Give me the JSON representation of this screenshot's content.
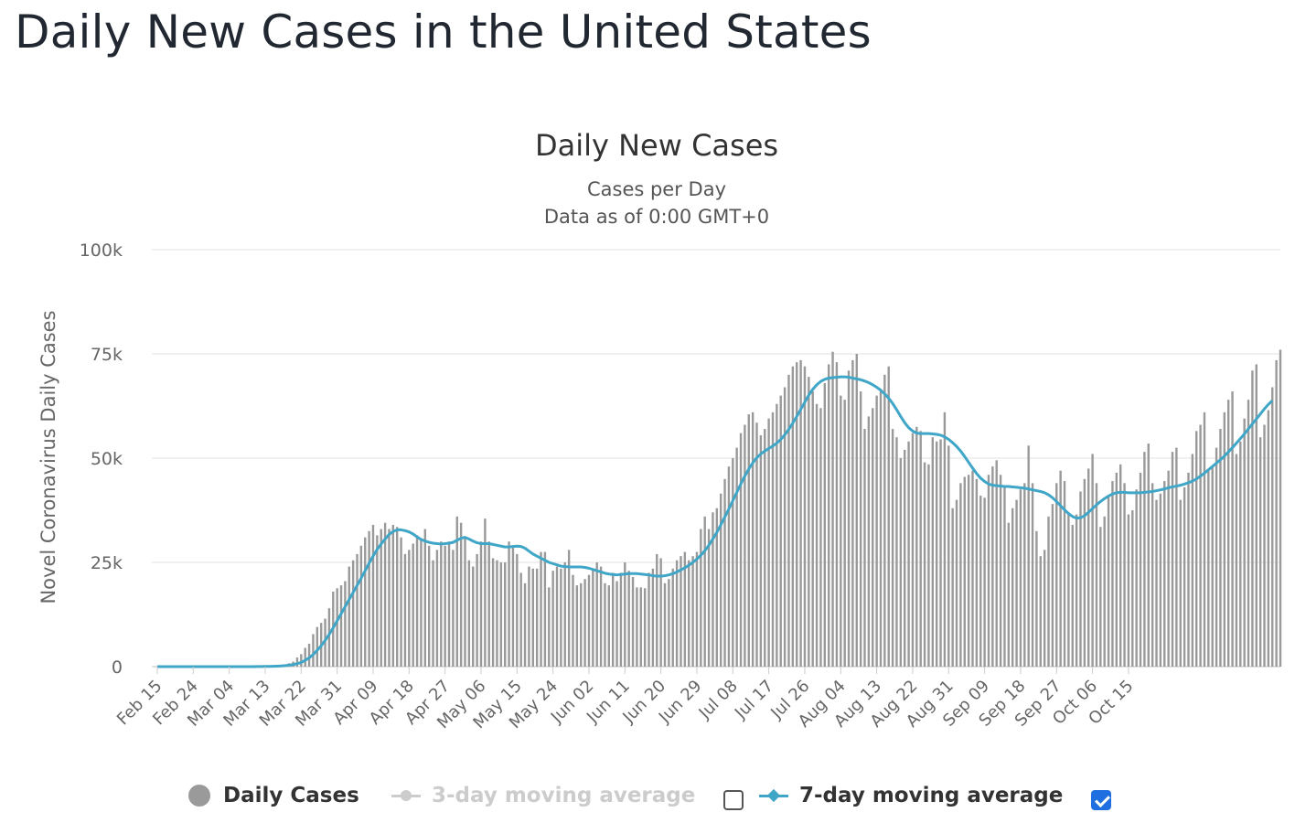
{
  "page": {
    "title": "Daily New Cases in the United States"
  },
  "colors": {
    "bar": "#999999",
    "ma7": "#3fa6c8",
    "ma3_disabled": "#cccccc",
    "grid": "#e6e6e6",
    "checkbox_checked": "#1f6fe0"
  },
  "legend": {
    "daily_cases": "Daily Cases",
    "ma3": "3-day moving average",
    "ma7": "7-day moving average",
    "ma3_checked": false,
    "ma7_checked": true
  },
  "chart_data": {
    "type": "bar",
    "title": "Daily New Cases",
    "subtitle_lines": [
      "Cases per Day",
      "Data as of 0:00 GMT+0"
    ],
    "ylabel": "Novel Coronavirus Daily Cases",
    "xlabel": "",
    "ylim": [
      0,
      100000
    ],
    "yticks": [
      0,
      25000,
      50000,
      75000,
      100000
    ],
    "ytick_labels": [
      "0",
      "25k",
      "50k",
      "75k",
      "100k"
    ],
    "grid": true,
    "legend_position": "bottom",
    "start_date": "2020-02-15",
    "x_tick_labels": [
      "Feb 15",
      "Feb 24",
      "Mar 04",
      "Mar 13",
      "Mar 22",
      "Mar 31",
      "Apr 09",
      "Apr 18",
      "Apr 27",
      "May 06",
      "May 15",
      "May 24",
      "Jun 02",
      "Jun 11",
      "Jun 20",
      "Jun 29",
      "Jul 08",
      "Jul 17",
      "Jul 26",
      "Aug 04",
      "Aug 13",
      "Aug 22",
      "Aug 31",
      "Sep 09",
      "Sep 18",
      "Sep 27",
      "Oct 06",
      "Oct 15"
    ],
    "x_tick_step": 9,
    "series": [
      {
        "name": "Daily Cases",
        "type": "bar",
        "values": [
          0,
          0,
          0,
          0,
          0,
          0,
          0,
          0,
          0,
          0,
          0,
          0,
          0,
          0,
          0,
          0,
          0,
          0,
          0,
          0,
          0,
          10,
          20,
          20,
          30,
          50,
          60,
          100,
          120,
          200,
          300,
          400,
          500,
          800,
          1200,
          2200,
          3000,
          4500,
          5500,
          7800,
          9500,
          10500,
          11500,
          14000,
          18000,
          18800,
          19500,
          20500,
          24000,
          25500,
          27000,
          29000,
          31000,
          32500,
          34000,
          31500,
          33000,
          34500,
          33000,
          34000,
          33500,
          31000,
          27000,
          28000,
          29500,
          31500,
          30500,
          33000,
          29000,
          25500,
          28000,
          30000,
          29000,
          30000,
          28000,
          36000,
          34500,
          31000,
          25500,
          24000,
          27000,
          30000,
          35500,
          30000,
          26000,
          25500,
          25000,
          25000,
          30000,
          28500,
          27000,
          22500,
          20000,
          24000,
          23500,
          23500,
          27500,
          27500,
          19000,
          23000,
          24000,
          23500,
          25000,
          28000,
          22000,
          19500,
          20000,
          21000,
          22000,
          23500,
          25000,
          24000,
          20000,
          19500,
          22500,
          20500,
          22500,
          25000,
          23000,
          21500,
          19000,
          19000,
          18800,
          22500,
          23500,
          27000,
          26000,
          20000,
          21000,
          23500,
          25500,
          26500,
          27500,
          25500,
          26500,
          27500,
          33000,
          36000,
          33000,
          37000,
          38000,
          41500,
          45000,
          48000,
          50000,
          52500,
          56000,
          58000,
          60500,
          61000,
          58500,
          55500,
          57000,
          59500,
          61000,
          63000,
          65000,
          67000,
          70000,
          72000,
          73000,
          73500,
          72000,
          69500,
          66000,
          63000,
          62000,
          68000,
          72500,
          75500,
          73000,
          65000,
          64000,
          71000,
          73500,
          75000,
          66000,
          57000,
          60000,
          62000,
          65000,
          66000,
          70000,
          72000,
          57000,
          55000,
          50000,
          52000,
          54000,
          56000,
          57500,
          56500,
          49000,
          48500,
          55000,
          54000,
          54500,
          61000,
          53000,
          38000,
          40000,
          44000,
          45500,
          46000,
          47000,
          45000,
          41000,
          40500,
          46000,
          48000,
          49500,
          46000,
          43000,
          34500,
          38000,
          40000,
          42500,
          44000,
          53000,
          44000,
          32500,
          26500,
          28000,
          36000,
          39000,
          44000,
          47000,
          44500,
          37000,
          34000,
          36500,
          42000,
          45000,
          47500,
          51000,
          44000,
          33500,
          36000,
          41000,
          44500,
          46500,
          48500,
          44000,
          36500,
          37500,
          42500,
          46500,
          51500,
          53500,
          44000,
          40000,
          41500,
          44500,
          47000,
          51500,
          52500,
          40000,
          43000,
          46500,
          51000,
          56500,
          58000,
          61000,
          47000,
          48000,
          52500,
          57000,
          61000,
          64000,
          66000,
          51000,
          54000,
          59500,
          64000,
          71000,
          72500,
          55000,
          58000,
          61500,
          67000,
          73500,
          76000
        ],
        "color": "#999999"
      },
      {
        "name": "7-day moving average",
        "type": "line",
        "values": [
          0,
          0,
          0,
          0,
          0,
          0,
          0,
          0,
          0,
          0,
          0,
          0,
          0,
          0,
          0,
          0,
          0,
          0,
          0,
          0,
          0,
          3,
          6,
          9,
          13,
          20,
          28,
          43,
          60,
          86,
          120,
          173,
          246,
          350,
          500,
          700,
          1000,
          1500,
          2100,
          2900,
          3900,
          5000,
          6300,
          7700,
          9300,
          11000,
          12700,
          14400,
          16100,
          17800,
          19500,
          21200,
          23000,
          24800,
          26500,
          28100,
          29400,
          30600,
          31700,
          32400,
          32800,
          32800,
          32600,
          32300,
          31800,
          31100,
          30500,
          30100,
          29800,
          29600,
          29500,
          29400,
          29500,
          29600,
          29800,
          30300,
          30800,
          31000,
          30600,
          30100,
          29700,
          29500,
          29500,
          29500,
          29300,
          29100,
          28900,
          28700,
          28700,
          28800,
          28900,
          28800,
          28400,
          27700,
          27000,
          26500,
          26000,
          25500,
          25000,
          24700,
          24400,
          24100,
          24000,
          23900,
          23900,
          23900,
          23900,
          23800,
          23600,
          23300,
          23000,
          22700,
          22400,
          22200,
          22100,
          22000,
          22100,
          22200,
          22300,
          22300,
          22300,
          22200,
          22100,
          22000,
          21800,
          21700,
          21700,
          21800,
          22000,
          22300,
          22700,
          23200,
          23700,
          24300,
          25000,
          25800,
          26700,
          27800,
          29100,
          30600,
          32200,
          34000,
          35900,
          37800,
          39800,
          41800,
          43800,
          45700,
          47400,
          48900,
          50100,
          51000,
          51700,
          52300,
          52900,
          53600,
          54500,
          55600,
          56900,
          58400,
          60000,
          61700,
          63400,
          65100,
          66500,
          67600,
          68400,
          68900,
          69200,
          69300,
          69400,
          69500,
          69500,
          69400,
          69200,
          69000,
          68800,
          68500,
          68100,
          67600,
          67000,
          66300,
          65400,
          64400,
          63100,
          61600,
          60000,
          58500,
          57300,
          56500,
          56000,
          55900,
          55900,
          55900,
          55800,
          55700,
          55500,
          55100,
          54500,
          53700,
          52800,
          51700,
          50400,
          49000,
          47600,
          46300,
          45200,
          44400,
          43800,
          43500,
          43400,
          43300,
          43200,
          43200,
          43100,
          43000,
          42900,
          42800,
          42600,
          42400,
          42200,
          42000,
          41700,
          41200,
          40500,
          39600,
          38600,
          37600,
          36700,
          36000,
          35600,
          35700,
          36200,
          37000,
          37900,
          38800,
          39600,
          40300,
          40900,
          41400,
          41700,
          41800,
          41800,
          41700,
          41700,
          41700,
          41700,
          41800,
          41900,
          42000,
          42200,
          42400,
          42600,
          42900,
          43100,
          43300,
          43500,
          43800,
          44100,
          44500,
          45000,
          45700,
          46400,
          47200,
          48000,
          48800,
          49600,
          50500,
          51500,
          52500,
          53600,
          54700,
          55800,
          57000,
          58200,
          59400,
          60600,
          61800,
          62900,
          63800
        ]
      }
    ]
  }
}
